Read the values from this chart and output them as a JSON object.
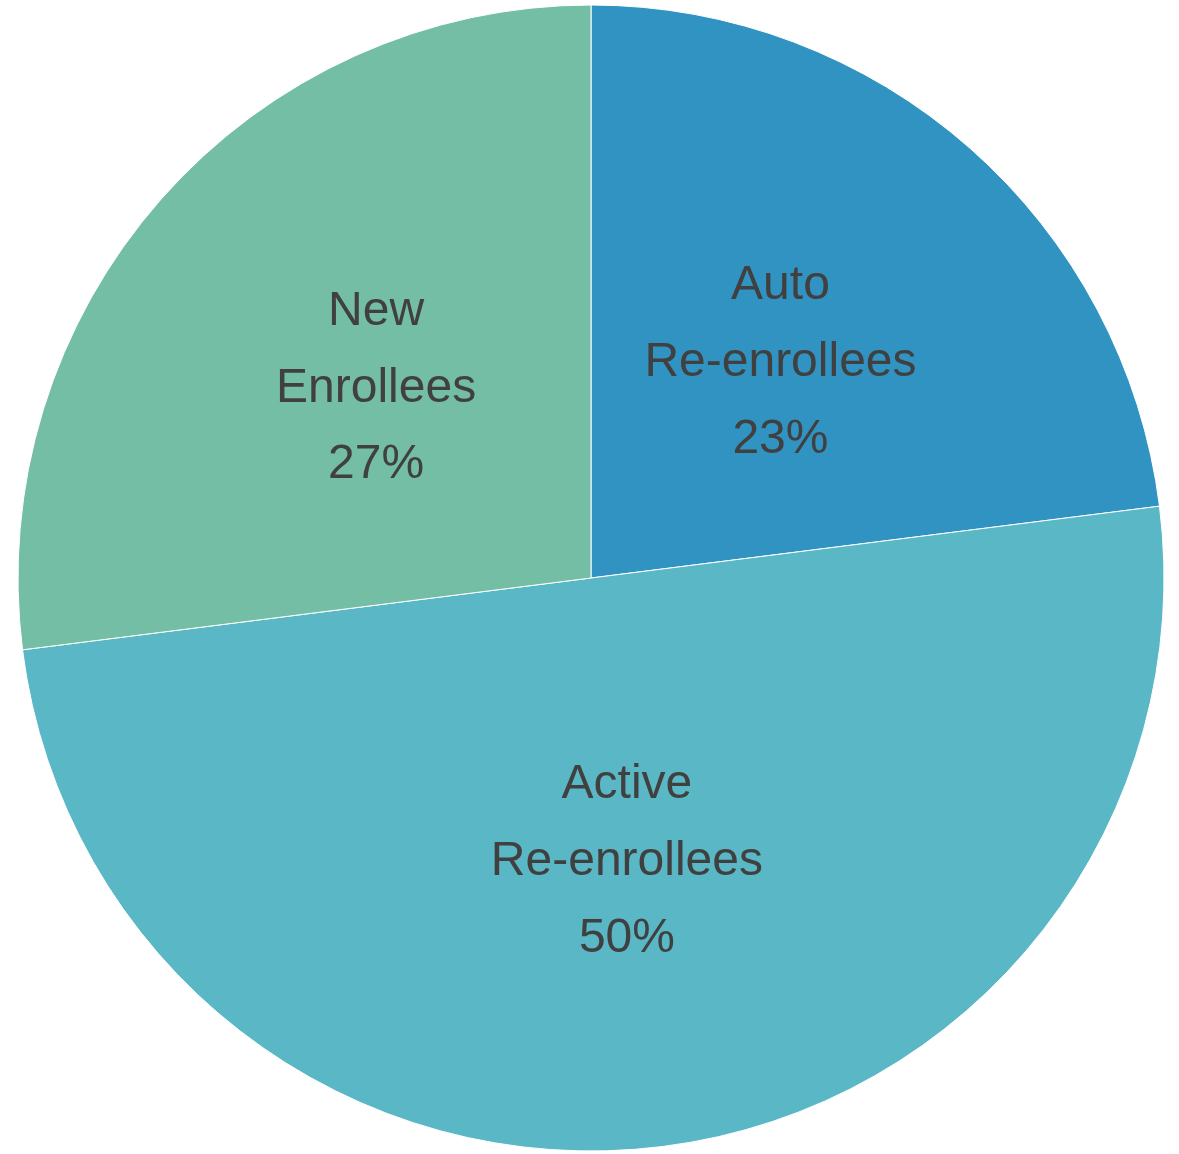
{
  "chart_data": {
    "type": "pie",
    "categories": [
      "Auto Re-enrollees",
      "Active Re-enrollees",
      "New Enrollees"
    ],
    "values": [
      23,
      50,
      27
    ],
    "colors": [
      "#3193c1",
      "#5ab7c6",
      "#74bea5"
    ],
    "value_labels": [
      "23%",
      "50%",
      "27%"
    ]
  }
}
